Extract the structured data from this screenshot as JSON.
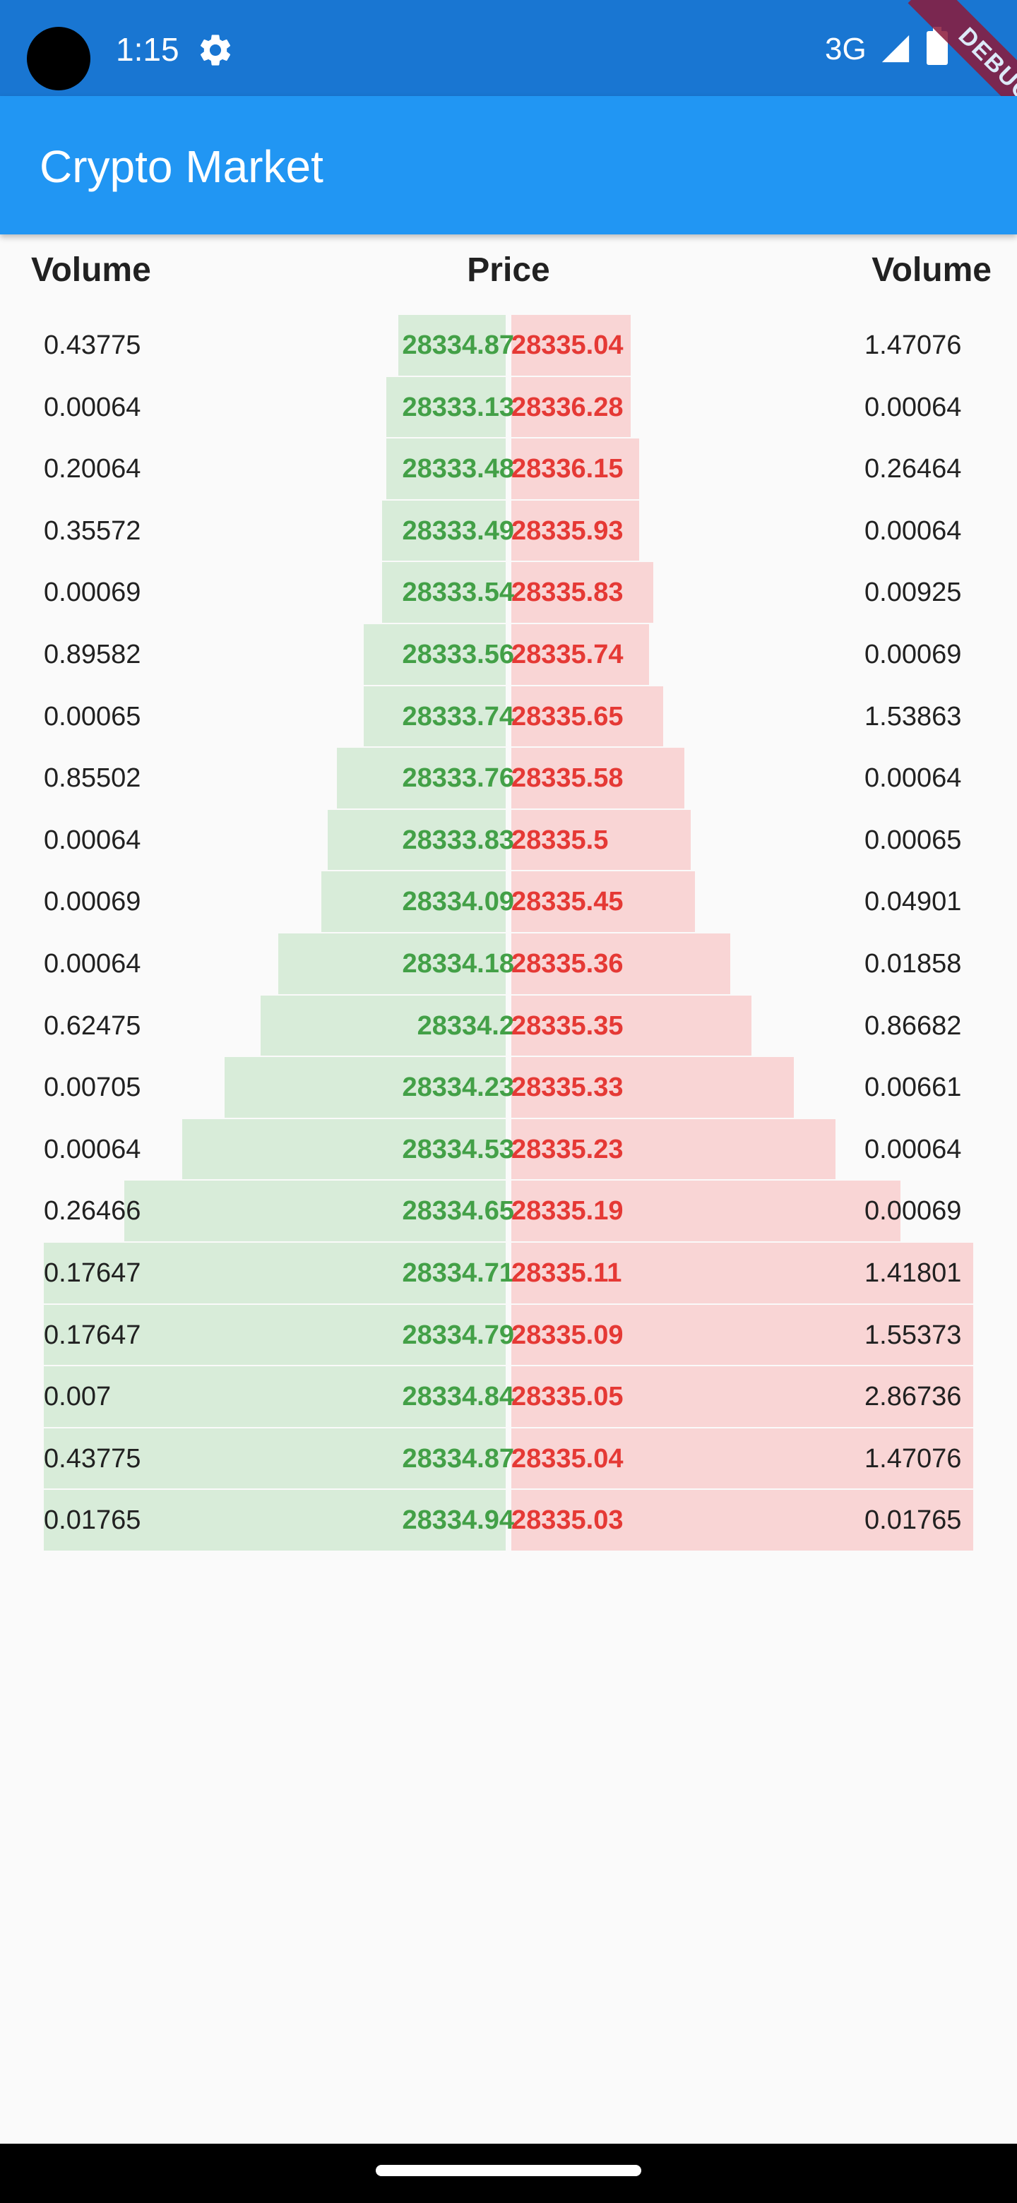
{
  "status_bar": {
    "time": "1:15",
    "network": "3G",
    "debug_label": "DEBUG",
    "icons": [
      "gear-icon",
      "signal-icon",
      "battery-icon"
    ],
    "background": "#1976d2"
  },
  "app_bar": {
    "title": "Crypto Market",
    "background": "#2196f3"
  },
  "headers": {
    "bid_volume": "Volume",
    "price": "Price",
    "ask_volume": "Volume"
  },
  "colors": {
    "bid_price": "#43a047",
    "ask_price": "#e53935",
    "bid_fill": "#d8ecd9",
    "ask_fill": "#f9d5d5"
  },
  "order_book": {
    "rows": [
      {
        "bid_volume": "0.43775",
        "bid_price": "28334.87",
        "ask_price": "28335.04",
        "ask_volume": "1.47076",
        "bid_depth": 0.232,
        "ask_depth": 0.258
      },
      {
        "bid_volume": "0.00064",
        "bid_price": "28333.13",
        "ask_price": "28336.28",
        "ask_volume": "0.00064",
        "bid_depth": 0.258,
        "ask_depth": 0.258
      },
      {
        "bid_volume": "0.20064",
        "bid_price": "28333.48",
        "ask_price": "28336.15",
        "ask_volume": "0.26464",
        "bid_depth": 0.258,
        "ask_depth": 0.277
      },
      {
        "bid_volume": "0.35572",
        "bid_price": "28333.49",
        "ask_price": "28335.93",
        "ask_volume": "0.00064",
        "bid_depth": 0.267,
        "ask_depth": 0.277
      },
      {
        "bid_volume": "0.00069",
        "bid_price": "28333.54",
        "ask_price": "28335.83",
        "ask_volume": "0.00925",
        "bid_depth": 0.267,
        "ask_depth": 0.308
      },
      {
        "bid_volume": "0.89582",
        "bid_price": "28333.56",
        "ask_price": "28335.74",
        "ask_volume": "0.00069",
        "bid_depth": 0.308,
        "ask_depth": 0.298
      },
      {
        "bid_volume": "0.00065",
        "bid_price": "28333.74",
        "ask_price": "28335.65",
        "ask_volume": "1.53863",
        "bid_depth": 0.308,
        "ask_depth": 0.328
      },
      {
        "bid_volume": "0.85502",
        "bid_price": "28333.76",
        "ask_price": "28335.58",
        "ask_volume": "0.00064",
        "bid_depth": 0.366,
        "ask_depth": 0.374
      },
      {
        "bid_volume": "0.00064",
        "bid_price": "28333.83",
        "ask_price": "28335.5",
        "ask_volume": "0.00065",
        "bid_depth": 0.385,
        "ask_depth": 0.389
      },
      {
        "bid_volume": "0.00069",
        "bid_price": "28334.09",
        "ask_price": "28335.45",
        "ask_volume": "0.04901",
        "bid_depth": 0.399,
        "ask_depth": 0.398
      },
      {
        "bid_volume": "0.00064",
        "bid_price": "28334.18",
        "ask_price": "28335.36",
        "ask_volume": "0.01858",
        "bid_depth": 0.492,
        "ask_depth": 0.474
      },
      {
        "bid_volume": "0.62475",
        "bid_price": "28334.2",
        "ask_price": "28335.35",
        "ask_volume": "0.86682",
        "bid_depth": 0.531,
        "ask_depth": 0.52
      },
      {
        "bid_volume": "0.00705",
        "bid_price": "28334.23",
        "ask_price": "28335.33",
        "ask_volume": "0.00661",
        "bid_depth": 0.608,
        "ask_depth": 0.611
      },
      {
        "bid_volume": "0.00064",
        "bid_price": "28334.53",
        "ask_price": "28335.23",
        "ask_volume": "0.00064",
        "bid_depth": 0.7,
        "ask_depth": 0.702
      },
      {
        "bid_volume": "0.26466",
        "bid_price": "28334.65",
        "ask_price": "28335.19",
        "ask_volume": "0.00069",
        "bid_depth": 0.825,
        "ask_depth": 0.842
      },
      {
        "bid_volume": "0.17647",
        "bid_price": "28334.71",
        "ask_price": "28335.11",
        "ask_volume": "1.41801",
        "bid_depth": 1.0,
        "ask_depth": 1.0
      },
      {
        "bid_volume": "0.17647",
        "bid_price": "28334.79",
        "ask_price": "28335.09",
        "ask_volume": "1.55373",
        "bid_depth": 1.0,
        "ask_depth": 1.0
      },
      {
        "bid_volume": "0.007",
        "bid_price": "28334.84",
        "ask_price": "28335.05",
        "ask_volume": "2.86736",
        "bid_depth": 1.0,
        "ask_depth": 1.0
      },
      {
        "bid_volume": "0.43775",
        "bid_price": "28334.87",
        "ask_price": "28335.04",
        "ask_volume": "1.47076",
        "bid_depth": 1.0,
        "ask_depth": 1.0
      },
      {
        "bid_volume": "0.01765",
        "bid_price": "28334.94",
        "ask_price": "28335.03",
        "ask_volume": "0.01765",
        "bid_depth": 1.0,
        "ask_depth": 1.0
      }
    ]
  }
}
